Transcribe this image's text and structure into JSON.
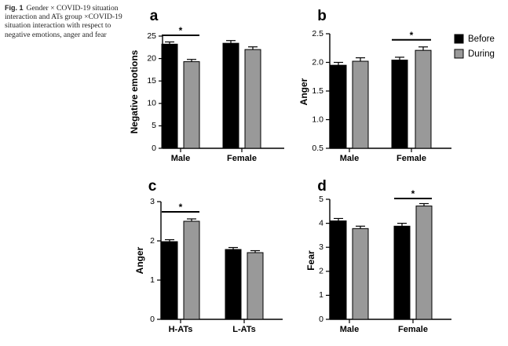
{
  "caption": {
    "fig_label": "Fig. 1",
    "text": "Gender × COVID-19 situation interaction and ATs group ×COVID-19 situation interaction with respect to negative emotions, anger and fear"
  },
  "legend": {
    "position": "top-right",
    "entries": [
      {
        "name": "Before",
        "color": "#000000"
      },
      {
        "name": "During",
        "color": "#999999"
      }
    ]
  },
  "chart_data": [
    {
      "panel": "a",
      "type": "bar",
      "ylabel": "Negative emotions",
      "categories": [
        "Male",
        "Female"
      ],
      "ylim": [
        0,
        25
      ],
      "yticks": [
        0,
        5,
        10,
        15,
        20,
        25
      ],
      "series": [
        {
          "name": "Before",
          "values": [
            23.2,
            23.4
          ],
          "errors": [
            0.5,
            0.6
          ]
        },
        {
          "name": "During",
          "values": [
            19.3,
            22.0
          ],
          "errors": [
            0.5,
            0.6
          ]
        }
      ],
      "significance": [
        {
          "category": "Male",
          "label": "*"
        }
      ]
    },
    {
      "panel": "b",
      "type": "bar",
      "ylabel": "Anger",
      "categories": [
        "Male",
        "Female"
      ],
      "ylim": [
        0.5,
        2.5
      ],
      "yticks": [
        0.5,
        1.0,
        1.5,
        2.0,
        2.5
      ],
      "series": [
        {
          "name": "Before",
          "values": [
            1.95,
            2.04
          ],
          "errors": [
            0.05,
            0.05
          ]
        },
        {
          "name": "During",
          "values": [
            2.02,
            2.21
          ],
          "errors": [
            0.06,
            0.06
          ]
        }
      ],
      "significance": [
        {
          "category": "Female",
          "label": "*"
        }
      ]
    },
    {
      "panel": "c",
      "type": "bar",
      "ylabel": "Anger",
      "categories": [
        "H-ATs",
        "L-ATs"
      ],
      "ylim": [
        0,
        3
      ],
      "yticks": [
        0,
        1,
        2,
        3
      ],
      "series": [
        {
          "name": "Before",
          "values": [
            1.98,
            1.78
          ],
          "errors": [
            0.05,
            0.05
          ]
        },
        {
          "name": "During",
          "values": [
            2.5,
            1.7
          ],
          "errors": [
            0.06,
            0.05
          ]
        }
      ],
      "significance": [
        {
          "category": "H-ATs",
          "label": "*"
        }
      ]
    },
    {
      "panel": "d",
      "type": "bar",
      "ylabel": "Fear",
      "categories": [
        "Male",
        "Female"
      ],
      "ylim": [
        0,
        5
      ],
      "yticks": [
        0,
        1,
        2,
        3,
        4,
        5
      ],
      "series": [
        {
          "name": "Before",
          "values": [
            4.1,
            3.88
          ],
          "errors": [
            0.1,
            0.12
          ]
        },
        {
          "name": "During",
          "values": [
            3.78,
            4.72
          ],
          "errors": [
            0.1,
            0.1
          ]
        }
      ],
      "significance": [
        {
          "category": "Female",
          "label": "*"
        }
      ]
    }
  ]
}
